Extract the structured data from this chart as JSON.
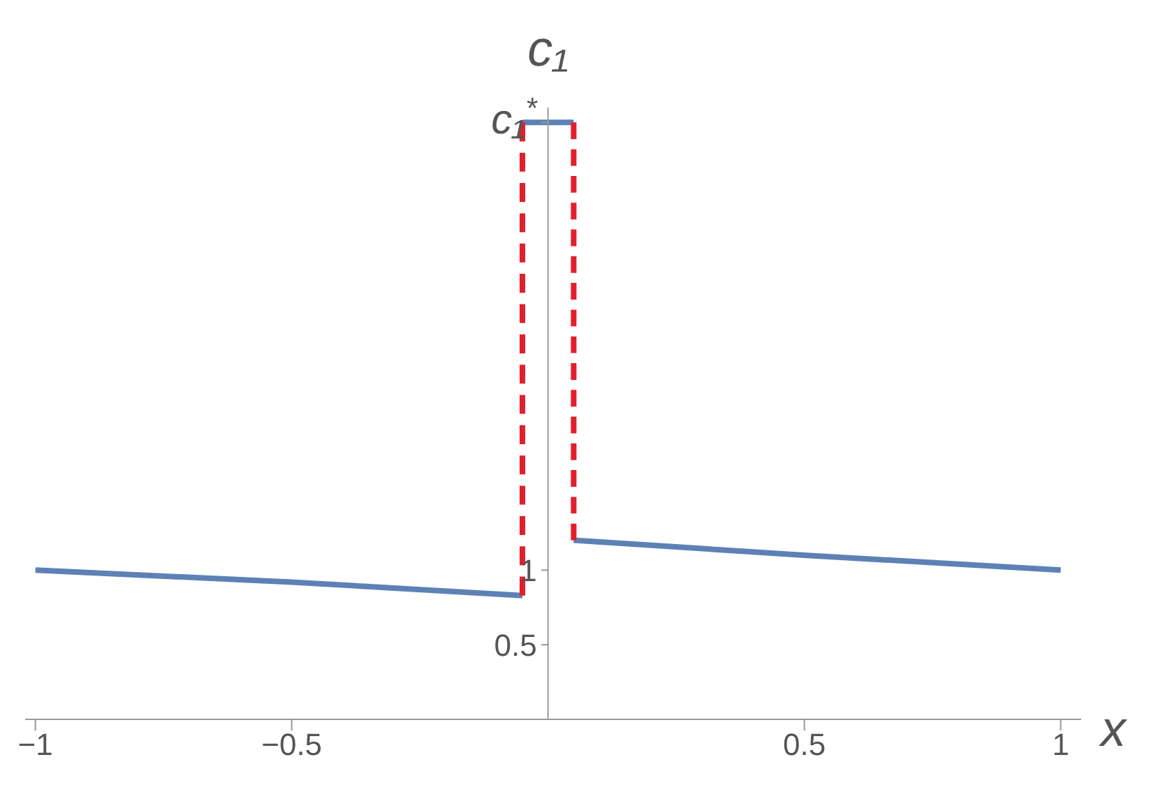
{
  "chart_data": {
    "type": "line",
    "xlabel": "x",
    "ylabel": "c₁",
    "xlim": [
      -1.02,
      1.04
    ],
    "ylim": [
      0,
      4.1
    ],
    "xticks": [
      {
        "value": -1,
        "label": "−1"
      },
      {
        "value": -0.5,
        "label": "−0.5"
      },
      0.5,
      1
    ],
    "yticks": [
      0.5,
      1,
      {
        "value": 4,
        "label": "c₁$^{*}$"
      }
    ],
    "series": [
      {
        "color": "#5e81b5",
        "x": [
          -1,
          -0.5,
          -0.05
        ],
        "values": [
          1.0,
          0.92,
          0.83
        ]
      },
      {
        "color": "#5e81b5",
        "x": [
          -0.05,
          0.05
        ],
        "values": [
          4,
          4
        ]
      },
      {
        "color": "#5e81b5",
        "x": [
          0.05,
          0.5,
          1
        ],
        "values": [
          1.2,
          1.1,
          1.0
        ]
      },
      {
        "color": "#e0202b",
        "line_style": "dashed",
        "x": [
          -0.05,
          -0.05
        ],
        "values": [
          0.83,
          4
        ]
      },
      {
        "color": "#e0202b",
        "line_style": "dashed",
        "x": [
          0.05,
          0.05
        ],
        "values": [
          1.2,
          4
        ]
      }
    ]
  }
}
